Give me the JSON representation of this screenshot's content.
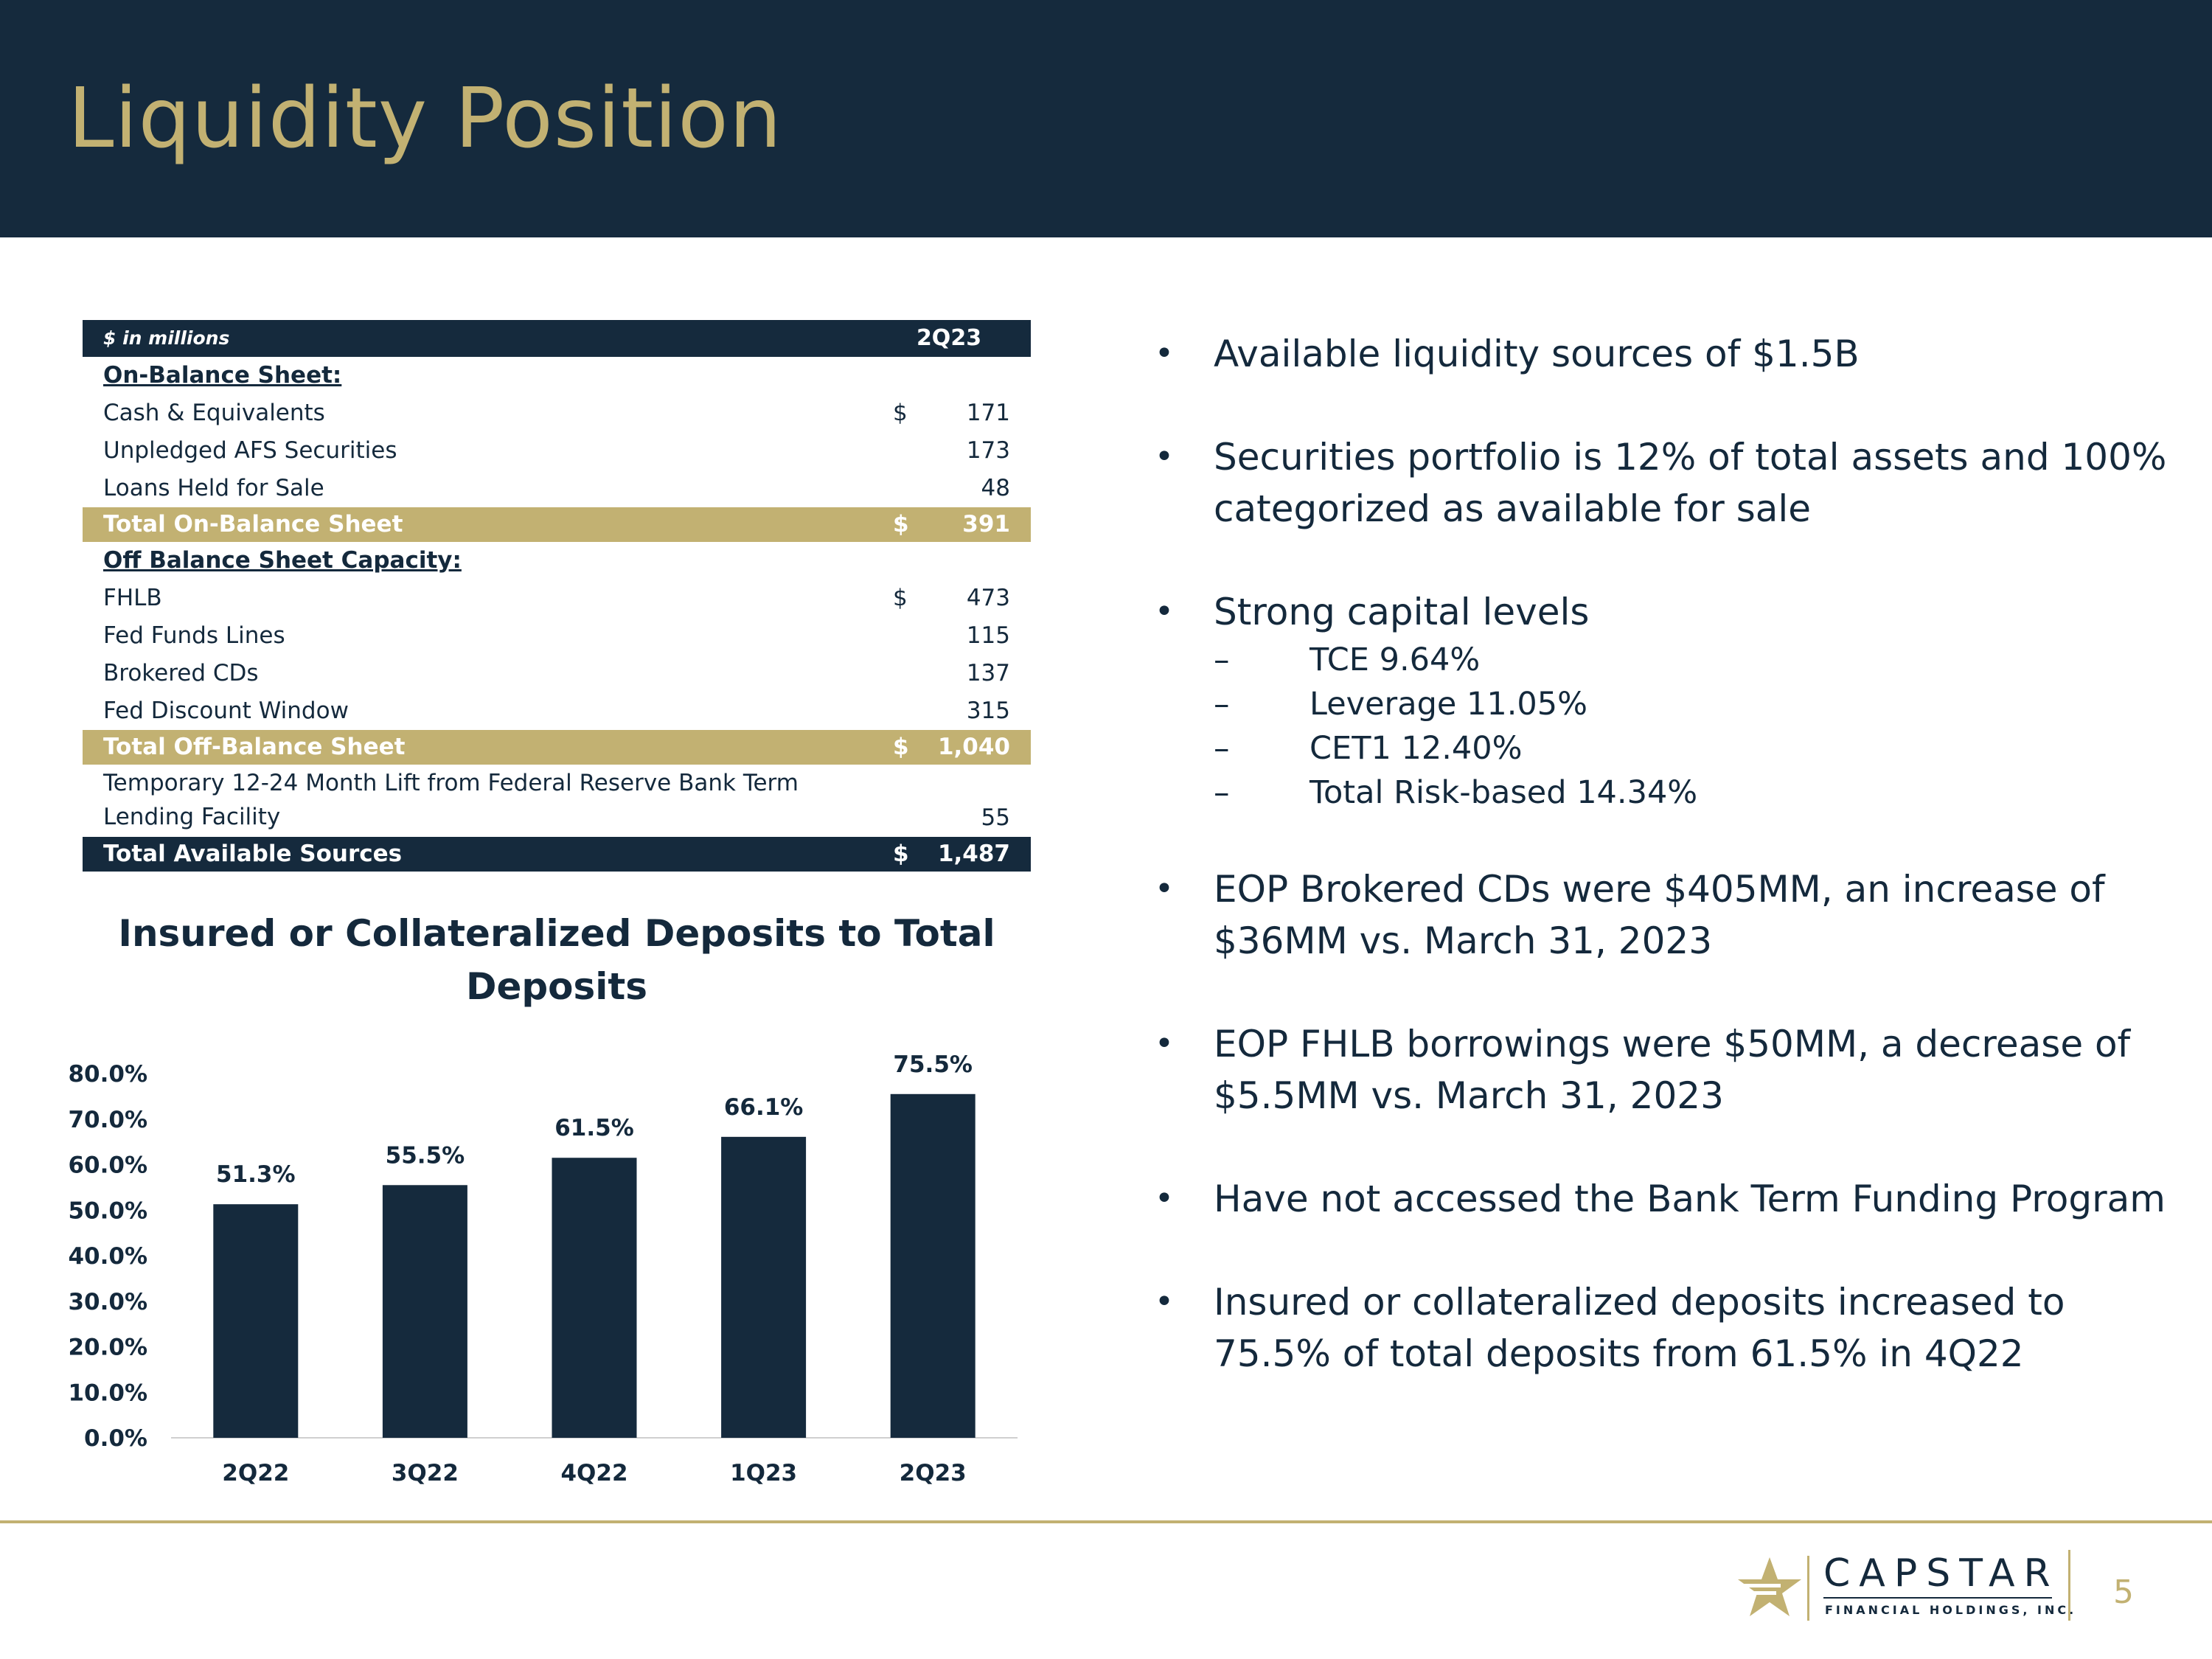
{
  "slide": {
    "title": "Liquidity Position",
    "page_number": "5"
  },
  "table": {
    "unit_label": "$ in millions",
    "period": "2Q23",
    "rows": [
      {
        "label": "On-Balance Sheet:",
        "currency": "",
        "value": ""
      },
      {
        "label": "Cash & Equivalents",
        "currency": "$",
        "value": "171"
      },
      {
        "label": "Unpledged AFS Securities",
        "currency": "",
        "value": "173"
      },
      {
        "label": "Loans Held for Sale",
        "currency": "",
        "value": "48"
      },
      {
        "label": "Total On-Balance Sheet",
        "currency": "$",
        "value": "391"
      },
      {
        "label": "Off Balance Sheet Capacity:",
        "currency": "",
        "value": ""
      },
      {
        "label": "FHLB",
        "currency": "$",
        "value": "473"
      },
      {
        "label": "Fed Funds Lines",
        "currency": "",
        "value": "115"
      },
      {
        "label": "Brokered CDs",
        "currency": "",
        "value": "137"
      },
      {
        "label": "Fed Discount Window",
        "currency": "",
        "value": "315"
      },
      {
        "label": "Total Off-Balance Sheet",
        "currency": "$",
        "value": "1,040"
      },
      {
        "label": "Temporary 12-24 Month Lift from Federal Reserve Bank Term Lending Facility",
        "currency": "",
        "value": "55"
      },
      {
        "label": "Total Available Sources",
        "currency": "$",
        "value": "1,487"
      }
    ]
  },
  "chart_data": {
    "type": "bar",
    "title": "Insured or Collateralized Deposits to Total Deposits",
    "categories": [
      "2Q22",
      "3Q22",
      "4Q22",
      "1Q23",
      "2Q23"
    ],
    "values": [
      51.3,
      55.5,
      61.5,
      66.1,
      75.5
    ],
    "data_labels": [
      "51.3%",
      "55.5%",
      "61.5%",
      "66.1%",
      "75.5%"
    ],
    "yticks": [
      "0.0%",
      "10.0%",
      "20.0%",
      "30.0%",
      "40.0%",
      "50.0%",
      "60.0%",
      "70.0%",
      "80.0%"
    ],
    "ylim": [
      0,
      80
    ],
    "grid": false,
    "legend": "none",
    "bar_color": "#152a3d"
  },
  "bullets": [
    {
      "text": "Available liquidity sources of $1.5B",
      "subs": []
    },
    {
      "text": "Securities portfolio is 12% of total assets and 100% categorized as available for sale",
      "subs": []
    },
    {
      "text": "Strong capital levels",
      "subs": [
        "TCE 9.64%",
        "Leverage 11.05%",
        "CET1 12.40%",
        "Total Risk-based 14.34%"
      ]
    },
    {
      "text": "EOP Brokered CDs were $405MM, an increase of $36MM vs. March 31, 2023",
      "subs": []
    },
    {
      "text": "EOP FHLB borrowings were $50MM, a decrease of $5.5MM vs. March 31, 2023",
      "subs": []
    },
    {
      "text": "Have not accessed the Bank Term Funding Program",
      "subs": []
    },
    {
      "text": "Insured or collateralized deposits increased to 75.5% of total deposits from 61.5% in 4Q22",
      "subs": []
    }
  ],
  "logo": {
    "name": "CAPSTAR",
    "tagline": "FINANCIAL HOLDINGS, INC."
  },
  "colors": {
    "navy": "#152a3d",
    "gold": "#c2b172"
  }
}
